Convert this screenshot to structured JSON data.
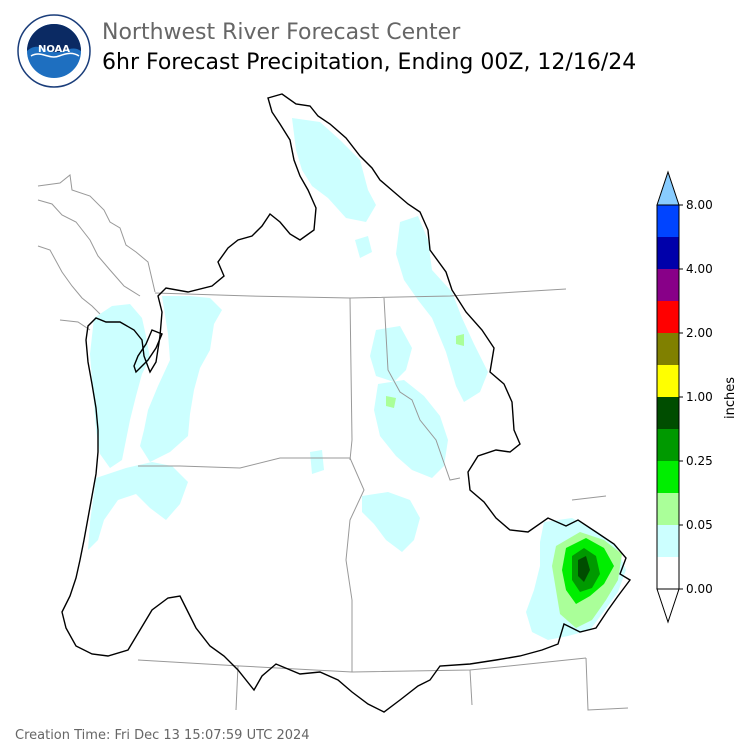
{
  "header": {
    "agency": "Northwest River Forecast Center",
    "product": "6hr Forecast Precipitation, Ending 00Z, 12/16/24"
  },
  "logo": {
    "icon": "noaa-logo-icon",
    "text": "NOAA",
    "ring_text": "NATIONAL OCEANIC AND ATMOSPHERIC ADMINISTRATION · U.S. DEPARTMENT OF COMMERCE"
  },
  "legend": {
    "unit": "inches",
    "tick_labels": [
      "0.00",
      "0.05",
      "0.25",
      "1.00",
      "2.00",
      "4.00",
      "8.00"
    ],
    "colors": [
      "#ffffff",
      "#ccffff",
      "#aaff99",
      "#00ee00",
      "#009900",
      "#004d00",
      "#ffff00",
      "#808000",
      "#ff0000",
      "#880088",
      "#0000aa",
      "#0044ff",
      "#88ccff"
    ]
  },
  "footer": {
    "creation_time": "Creation Time: Fri Dec 13 15:07:59 UTC 2024"
  }
}
